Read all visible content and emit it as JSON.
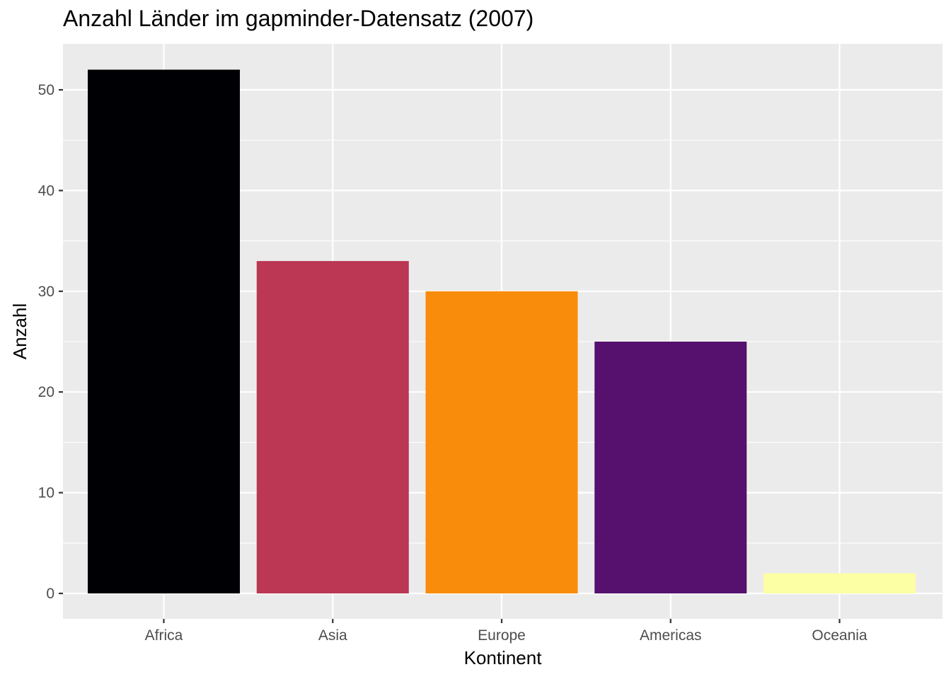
{
  "chart_data": {
    "type": "bar",
    "title": "Anzahl Länder im gapminder-Datensatz (2007)",
    "xlabel": "Kontinent",
    "ylabel": "Anzahl",
    "categories": [
      "Africa",
      "Asia",
      "Europe",
      "Americas",
      "Oceania"
    ],
    "values": [
      52,
      33,
      30,
      25,
      2
    ],
    "colors": [
      "#000004",
      "#BB3754",
      "#F98C0A",
      "#56106E",
      "#FCFFA4"
    ],
    "ylim": [
      0,
      54.6
    ],
    "yticks": [
      0,
      10,
      20,
      30,
      40,
      50
    ],
    "grid": true,
    "legend": "none",
    "panel_background": "#EBEBEB",
    "grid_color": "#FFFFFF"
  }
}
